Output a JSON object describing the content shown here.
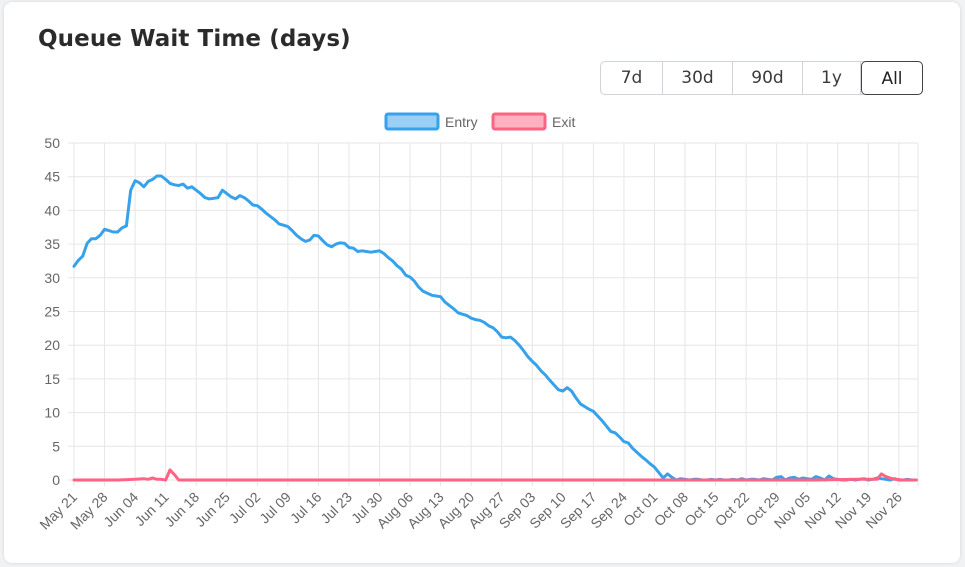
{
  "header": {
    "title": "Queue Wait Time (days)"
  },
  "range_buttons": [
    {
      "label": "7d",
      "active": false
    },
    {
      "label": "30d",
      "active": false
    },
    {
      "label": "90d",
      "active": false
    },
    {
      "label": "1y",
      "active": false
    },
    {
      "label": "All",
      "active": true
    }
  ],
  "chart_data": {
    "type": "line",
    "title": "",
    "xlabel": "",
    "ylabel": "",
    "ylim": [
      0,
      50
    ],
    "yticks": [
      0,
      5,
      10,
      15,
      20,
      25,
      30,
      35,
      40,
      45,
      50
    ],
    "grid": true,
    "legend": "top-center",
    "x_tick_labels": [
      "May 21",
      "May 28",
      "Jun 04",
      "Jun 11",
      "Jun 18",
      "Jun 25",
      "Jul 02",
      "Jul 09",
      "Jul 16",
      "Jul 23",
      "Jul 30",
      "Aug 06",
      "Aug 13",
      "Aug 20",
      "Aug 27",
      "Sep 03",
      "Sep 10",
      "Sep 17",
      "Sep 24",
      "Oct 01",
      "Oct 08",
      "Oct 15",
      "Oct 22",
      "Oct 29",
      "Nov 05",
      "Nov 12",
      "Nov 19",
      "Nov 26"
    ],
    "x_start": "May 21",
    "x_end": "Nov 30",
    "series": [
      {
        "name": "Entry",
        "color": "#36a2eb",
        "fill": "#9ad0f5",
        "values": [
          [
            0,
            31.7
          ],
          [
            1,
            32.6
          ],
          [
            2,
            33.2
          ],
          [
            3,
            35.1
          ],
          [
            4,
            35.8
          ],
          [
            5,
            35.8
          ],
          [
            6,
            36.3
          ],
          [
            7,
            37.2
          ],
          [
            8,
            37.0
          ],
          [
            9,
            36.8
          ],
          [
            10,
            36.8
          ],
          [
            11,
            37.4
          ],
          [
            12,
            37.7
          ],
          [
            13,
            43.0
          ],
          [
            14,
            44.4
          ],
          [
            15,
            44.1
          ],
          [
            16,
            43.5
          ],
          [
            17,
            44.3
          ],
          [
            18,
            44.6
          ],
          [
            19,
            45.1
          ],
          [
            20,
            45.1
          ],
          [
            21,
            44.6
          ],
          [
            22,
            44.0
          ],
          [
            23,
            43.8
          ],
          [
            24,
            43.7
          ],
          [
            25,
            43.9
          ],
          [
            26,
            43.3
          ],
          [
            27,
            43.5
          ],
          [
            28,
            43.0
          ],
          [
            29,
            42.5
          ],
          [
            30,
            41.9
          ],
          [
            31,
            41.7
          ],
          [
            32,
            41.8
          ],
          [
            33,
            41.9
          ],
          [
            34,
            43.0
          ],
          [
            35,
            42.5
          ],
          [
            36,
            42.0
          ],
          [
            37,
            41.7
          ],
          [
            38,
            42.2
          ],
          [
            39,
            41.9
          ],
          [
            40,
            41.4
          ],
          [
            41,
            40.8
          ],
          [
            42,
            40.7
          ],
          [
            43,
            40.2
          ],
          [
            44,
            39.6
          ],
          [
            45,
            39.1
          ],
          [
            46,
            38.6
          ],
          [
            47,
            38.0
          ],
          [
            48,
            37.8
          ],
          [
            49,
            37.6
          ],
          [
            50,
            37.0
          ],
          [
            51,
            36.3
          ],
          [
            52,
            35.8
          ],
          [
            53,
            35.4
          ],
          [
            54,
            35.6
          ],
          [
            55,
            36.3
          ],
          [
            56,
            36.2
          ],
          [
            57,
            35.5
          ],
          [
            58,
            34.9
          ],
          [
            59,
            34.6
          ],
          [
            60,
            35.0
          ],
          [
            61,
            35.2
          ],
          [
            62,
            35.1
          ],
          [
            63,
            34.5
          ],
          [
            64,
            34.4
          ],
          [
            65,
            33.9
          ],
          [
            66,
            34.0
          ],
          [
            67,
            33.9
          ],
          [
            68,
            33.8
          ],
          [
            69,
            33.9
          ],
          [
            70,
            34.0
          ],
          [
            71,
            33.6
          ],
          [
            72,
            33.0
          ],
          [
            73,
            32.5
          ],
          [
            74,
            31.8
          ],
          [
            75,
            31.3
          ],
          [
            76,
            30.4
          ],
          [
            77,
            30.1
          ],
          [
            78,
            29.5
          ],
          [
            79,
            28.6
          ],
          [
            80,
            28.0
          ],
          [
            81,
            27.7
          ],
          [
            82,
            27.4
          ],
          [
            83,
            27.3
          ],
          [
            84,
            27.2
          ],
          [
            85,
            26.4
          ],
          [
            86,
            25.9
          ],
          [
            87,
            25.4
          ],
          [
            88,
            24.8
          ],
          [
            89,
            24.6
          ],
          [
            90,
            24.4
          ],
          [
            91,
            24.0
          ],
          [
            92,
            23.8
          ],
          [
            93,
            23.7
          ],
          [
            94,
            23.4
          ],
          [
            95,
            22.9
          ],
          [
            96,
            22.6
          ],
          [
            97,
            22.0
          ],
          [
            98,
            21.2
          ],
          [
            99,
            21.1
          ],
          [
            100,
            21.2
          ],
          [
            101,
            20.7
          ],
          [
            102,
            20.0
          ],
          [
            103,
            19.2
          ],
          [
            104,
            18.3
          ],
          [
            105,
            17.6
          ],
          [
            106,
            17.0
          ],
          [
            107,
            16.2
          ],
          [
            108,
            15.6
          ],
          [
            109,
            14.8
          ],
          [
            110,
            14.1
          ],
          [
            111,
            13.4
          ],
          [
            112,
            13.2
          ],
          [
            113,
            13.7
          ],
          [
            114,
            13.2
          ],
          [
            115,
            12.2
          ],
          [
            116,
            11.3
          ],
          [
            117,
            10.9
          ],
          [
            118,
            10.5
          ],
          [
            119,
            10.2
          ],
          [
            120,
            9.5
          ],
          [
            121,
            8.8
          ],
          [
            122,
            8.0
          ],
          [
            123,
            7.2
          ],
          [
            124,
            7.0
          ],
          [
            125,
            6.4
          ],
          [
            126,
            5.7
          ],
          [
            127,
            5.5
          ],
          [
            128,
            4.7
          ],
          [
            129,
            4.1
          ],
          [
            130,
            3.5
          ],
          [
            131,
            3.0
          ],
          [
            132,
            2.4
          ],
          [
            133,
            1.9
          ],
          [
            134,
            1.1
          ],
          [
            135,
            0.3
          ],
          [
            136,
            0.9
          ],
          [
            137,
            0.4
          ],
          [
            138,
            0.0
          ],
          [
            139,
            0.2
          ],
          [
            140,
            0.1
          ],
          [
            141,
            0.0
          ],
          [
            142,
            0.1
          ],
          [
            143,
            0.1
          ],
          [
            144,
            0.0
          ],
          [
            145,
            0.0
          ],
          [
            146,
            0.1
          ],
          [
            147,
            0.0
          ],
          [
            148,
            0.1
          ],
          [
            149,
            0.0
          ],
          [
            150,
            0.0
          ],
          [
            151,
            0.1
          ],
          [
            152,
            0.0
          ],
          [
            153,
            0.2
          ],
          [
            154,
            0.0
          ],
          [
            155,
            0.1
          ],
          [
            156,
            0.1
          ],
          [
            157,
            0.0
          ],
          [
            158,
            0.2
          ],
          [
            159,
            0.1
          ],
          [
            160,
            0.0
          ],
          [
            161,
            0.4
          ],
          [
            162,
            0.5
          ],
          [
            163,
            0.0
          ],
          [
            164,
            0.3
          ],
          [
            165,
            0.4
          ],
          [
            166,
            0.1
          ],
          [
            167,
            0.3
          ],
          [
            168,
            0.2
          ],
          [
            169,
            0.1
          ],
          [
            170,
            0.5
          ],
          [
            171,
            0.3
          ],
          [
            172,
            0.0
          ],
          [
            173,
            0.6
          ],
          [
            174,
            0.2
          ],
          [
            175,
            0.1
          ],
          [
            176,
            0.0
          ],
          [
            177,
            0.0
          ],
          [
            178,
            0.1
          ],
          [
            179,
            0.0
          ],
          [
            180,
            0.1
          ],
          [
            181,
            0.2
          ],
          [
            182,
            0.0
          ],
          [
            183,
            0.1
          ],
          [
            184,
            0.3
          ],
          [
            185,
            0.2
          ],
          [
            186,
            0.1
          ],
          [
            187,
            0.0
          ],
          [
            188,
            0.2
          ],
          [
            189,
            0.0
          ],
          [
            190,
            0.0
          ],
          [
            191,
            0.1
          ],
          [
            192,
            0.0
          ],
          [
            193,
            0.0
          ]
        ]
      },
      {
        "name": "Exit",
        "color": "#ff6384",
        "fill": "#ffb1c1",
        "values": [
          [
            0,
            0
          ],
          [
            10,
            0
          ],
          [
            14,
            0.1
          ],
          [
            16,
            0.2
          ],
          [
            17,
            0.1
          ],
          [
            18,
            0.3
          ],
          [
            19,
            0.1
          ],
          [
            20,
            0.1
          ],
          [
            21,
            0.0
          ],
          [
            22,
            1.5
          ],
          [
            23,
            0.8
          ],
          [
            24,
            0.0
          ],
          [
            30,
            0.0
          ],
          [
            60,
            0.0
          ],
          [
            100,
            0.0
          ],
          [
            120,
            0.0
          ],
          [
            140,
            0.0
          ],
          [
            160,
            0.0
          ],
          [
            170,
            0.0
          ],
          [
            180,
            0.1
          ],
          [
            184,
            0.1
          ],
          [
            185,
            0.9
          ],
          [
            186,
            0.5
          ],
          [
            187,
            0.3
          ],
          [
            188,
            0.1
          ],
          [
            190,
            0.0
          ],
          [
            193,
            0.0
          ]
        ]
      }
    ]
  }
}
